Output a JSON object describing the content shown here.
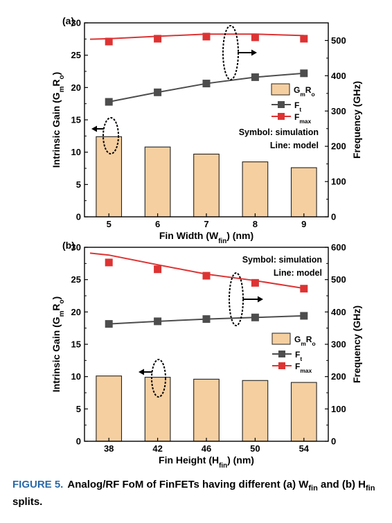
{
  "chart_data": [
    {
      "type": "bar",
      "panel_label": "(a)",
      "xlabel": "Fin Width (W",
      "xlabel_sub": "fin",
      "xlabel_tail": ") (nm)",
      "ylabel_left": "Intrinsic Gain (G",
      "ylabel_left_sub1": "m",
      "ylabel_left_mid": "R",
      "ylabel_left_sub2": "o",
      "ylabel_left_tail": ")",
      "ylabel_right": "Frequency (GHz)",
      "categories": [
        "5",
        "6",
        "7",
        "8",
        "9"
      ],
      "ylim_left": [
        0,
        30
      ],
      "yticks_left": [
        0,
        5,
        10,
        15,
        20,
        25,
        30
      ],
      "ylim_right": [
        0,
        550
      ],
      "yticks_right": [
        0,
        100,
        200,
        300,
        400,
        500
      ],
      "grid": false,
      "legend_position": "middle-right",
      "legend": {
        "gmro": "G",
        "gmro_sub1": "m",
        "gmro_mid": "R",
        "gmro_sub2": "o",
        "ft": "F",
        "ft_sub": "t",
        "fmax": "F",
        "fmax_sub": "max"
      },
      "annotations": [
        "Symbol: simulation",
        "Line: model"
      ],
      "series": [
        {
          "name": "GmRo",
          "kind": "bar",
          "axis": "left",
          "values": [
            12.4,
            10.8,
            9.7,
            8.5,
            7.6
          ]
        },
        {
          "name": "Ft",
          "kind": "line-marker",
          "axis": "right",
          "values": [
            326,
            353,
            378,
            396,
            407
          ],
          "model": [
            326,
            353,
            378,
            396,
            407
          ]
        },
        {
          "name": "Fmax",
          "kind": "marker",
          "axis": "right",
          "values": [
            497,
            505,
            511,
            509,
            505
          ],
          "model": [
            505,
            512,
            518,
            518,
            514
          ]
        }
      ],
      "colors": {
        "bar": "#f5cfa0",
        "bar_edge": "#222222",
        "ft": "#4d4d4d",
        "fmax": "#dd3333"
      }
    },
    {
      "type": "bar",
      "panel_label": "(b)",
      "xlabel": "Fin Height (H",
      "xlabel_sub": "fin",
      "xlabel_tail": ") (nm)",
      "ylabel_left": "Intrinsic Gain (G",
      "ylabel_left_sub1": "m",
      "ylabel_left_mid": "R",
      "ylabel_left_sub2": "o",
      "ylabel_left_tail": ")",
      "ylabel_right": "Frequency (GHz)",
      "categories": [
        "38",
        "42",
        "46",
        "50",
        "54"
      ],
      "ylim_left": [
        0,
        30
      ],
      "yticks_left": [
        0,
        5,
        10,
        15,
        20,
        25,
        30
      ],
      "ylim_right": [
        0,
        600
      ],
      "yticks_right": [
        0,
        100,
        200,
        300,
        400,
        500,
        600
      ],
      "grid": false,
      "legend_position": "middle-right",
      "legend": {
        "gmro": "G",
        "gmro_sub1": "m",
        "gmro_mid": "R",
        "gmro_sub2": "o",
        "ft": "F",
        "ft_sub": "t",
        "fmax": "F",
        "fmax_sub": "max"
      },
      "annotations": [
        "Symbol: simulation",
        "Line: model"
      ],
      "series": [
        {
          "name": "GmRo",
          "kind": "bar",
          "axis": "left",
          "values": [
            10.1,
            9.9,
            9.6,
            9.4,
            9.1
          ]
        },
        {
          "name": "Ft",
          "kind": "line-marker",
          "axis": "right",
          "values": [
            363,
            371,
            378,
            383,
            388
          ],
          "model": [
            363,
            371,
            378,
            383,
            388
          ]
        },
        {
          "name": "Fmax",
          "kind": "marker",
          "axis": "right",
          "values": [
            553,
            532,
            512,
            490,
            472
          ],
          "model": [
            576,
            546,
            517,
            497,
            473
          ]
        }
      ],
      "colors": {
        "bar": "#f5cfa0",
        "bar_edge": "#222222",
        "ft": "#4d4d4d",
        "fmax": "#dd3333"
      }
    }
  ],
  "caption": {
    "figure": "FIGURE 5.",
    "text1": "Analog/RF FoM of FinFETs having different (a) W",
    "sub1": "fin",
    "text2": " and (b) H",
    "sub2": "fin",
    "text3": " splits."
  }
}
